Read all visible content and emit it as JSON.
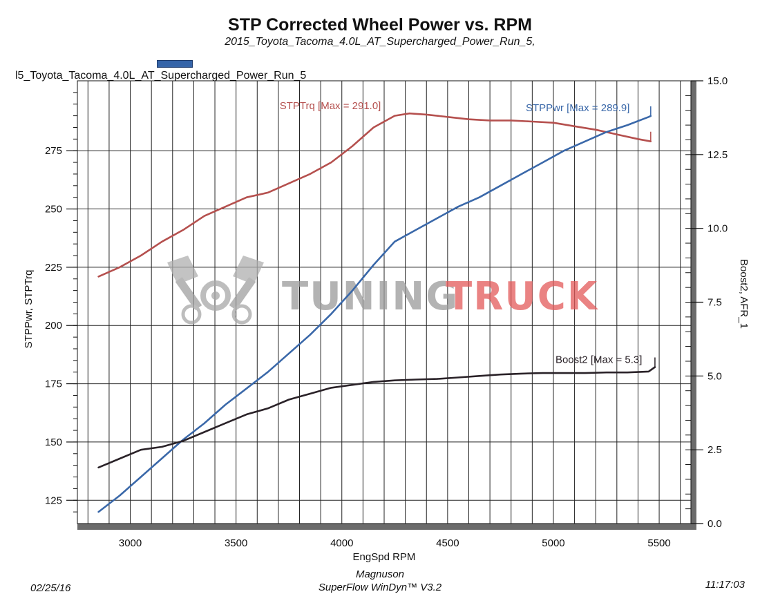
{
  "title": "STP Corrected Wheel Power vs. RPM",
  "subtitle": "2015_Toyota_Tacoma_4.0L_AT_Supercharged_Power_Run_5,",
  "legend_label": "l5_Toyota_Tacoma_4.0L_AT_Supercharged_Power_Run_5",
  "footer": {
    "date": "02/25/16",
    "brand_line1": "Magnuson",
    "brand_line2": "SuperFlow WinDyn™ V3.2",
    "time": "11:17:03"
  },
  "watermark": {
    "part1": "TUNING",
    "part2": "TRUCK"
  },
  "colors": {
    "torque": "#b5504e",
    "power": "#3a68a9",
    "boost": "#2a2228",
    "grid": "#222222",
    "watermark_gray": "#9a9a9a",
    "watermark_red": "#e35a5a"
  },
  "chart_data": {
    "type": "line",
    "title": "STP Corrected Wheel Power vs. RPM",
    "xlabel": "EngSpd RPM",
    "ylabel": "STPPwr, STPTrq",
    "y2label": "Boost2, AFR_1",
    "xlim": [
      2750,
      5650
    ],
    "ylim": [
      115,
      305
    ],
    "y2lim": [
      0,
      15
    ],
    "x_ticks": [
      "3000",
      "3500",
      "4000",
      "4500",
      "5000",
      "5500"
    ],
    "y_ticks": [
      "125",
      "150",
      "175",
      "200",
      "225",
      "250",
      "275"
    ],
    "y2_ticks": [
      "0.0",
      "2.5",
      "5.0",
      "7.5",
      "10.0",
      "12.5",
      "15.0"
    ],
    "grid": true,
    "series": [
      {
        "name": "STPTrq",
        "axis": "left",
        "label": "STPTrq [Max  = 291.0]",
        "x": [
          2850,
          2950,
          3050,
          3150,
          3250,
          3350,
          3450,
          3550,
          3650,
          3750,
          3850,
          3950,
          4050,
          4150,
          4250,
          4320,
          4400,
          4500,
          4600,
          4700,
          4800,
          4900,
          5000,
          5100,
          5200,
          5300,
          5400,
          5460
        ],
        "values": [
          221,
          225,
          230,
          236,
          241,
          247,
          251,
          255,
          257,
          261,
          265,
          270,
          277,
          285,
          290,
          291.0,
          290.5,
          289.5,
          288.5,
          288,
          288,
          287.5,
          287,
          285.5,
          284,
          282,
          280,
          279
        ]
      },
      {
        "name": "STPPwr",
        "axis": "left",
        "label": "STPPwr [Max = 289.9]",
        "x": [
          2850,
          2950,
          3050,
          3150,
          3250,
          3350,
          3450,
          3550,
          3650,
          3750,
          3850,
          3950,
          4050,
          4150,
          4250,
          4350,
          4450,
          4550,
          4650,
          4750,
          4850,
          4950,
          5050,
          5150,
          5250,
          5350,
          5450,
          5460
        ],
        "values": [
          120,
          127,
          135,
          143,
          151,
          158,
          166,
          173,
          180,
          188,
          196,
          205,
          215,
          226,
          236,
          241,
          246,
          251,
          255,
          260,
          265,
          270,
          275,
          279,
          283,
          286,
          289.5,
          289.9
        ]
      },
      {
        "name": "Boost2",
        "axis": "right",
        "label": "Boost2 [Max = 5.3]",
        "x": [
          2850,
          2950,
          3050,
          3150,
          3250,
          3350,
          3450,
          3550,
          3650,
          3750,
          3850,
          3950,
          4050,
          4150,
          4250,
          4350,
          4450,
          4550,
          4650,
          4750,
          4850,
          4950,
          5050,
          5150,
          5250,
          5350,
          5450,
          5480
        ],
        "values": [
          1.9,
          2.2,
          2.5,
          2.6,
          2.8,
          3.1,
          3.4,
          3.7,
          3.9,
          4.2,
          4.4,
          4.6,
          4.7,
          4.8,
          4.85,
          4.88,
          4.9,
          4.95,
          5.0,
          5.05,
          5.08,
          5.1,
          5.1,
          5.1,
          5.12,
          5.12,
          5.15,
          5.3
        ]
      }
    ]
  }
}
